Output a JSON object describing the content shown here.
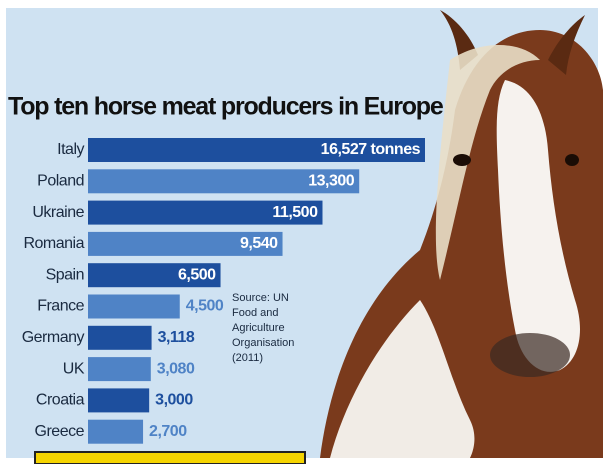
{
  "chart_data": {
    "type": "bar",
    "orientation": "horizontal",
    "title": "Top ten horse meat producers in Europe",
    "categories": [
      "Italy",
      "Poland",
      "Ukraine",
      "Romania",
      "Spain",
      "France",
      "Germany",
      "UK",
      "Croatia",
      "Greece"
    ],
    "values": [
      16527,
      13300,
      11500,
      9540,
      6500,
      4500,
      3118,
      3080,
      3000,
      2700
    ],
    "value_labels": [
      "16,527 tonnes",
      "13,300",
      "11,500",
      "9,540",
      "6,500",
      "4,500",
      "3,118",
      "3,080",
      "3,000",
      "2,700"
    ],
    "colors": [
      "#1d4f9e",
      "#4f83c6",
      "#1d4f9e",
      "#4f83c6",
      "#1d4f9e",
      "#4f83c6",
      "#1d4f9e",
      "#4f83c6",
      "#1d4f9e",
      "#4f83c6"
    ],
    "source": [
      "Source: UN",
      "Food and",
      "Agriculture",
      "Organisation",
      "(2011)"
    ]
  }
}
